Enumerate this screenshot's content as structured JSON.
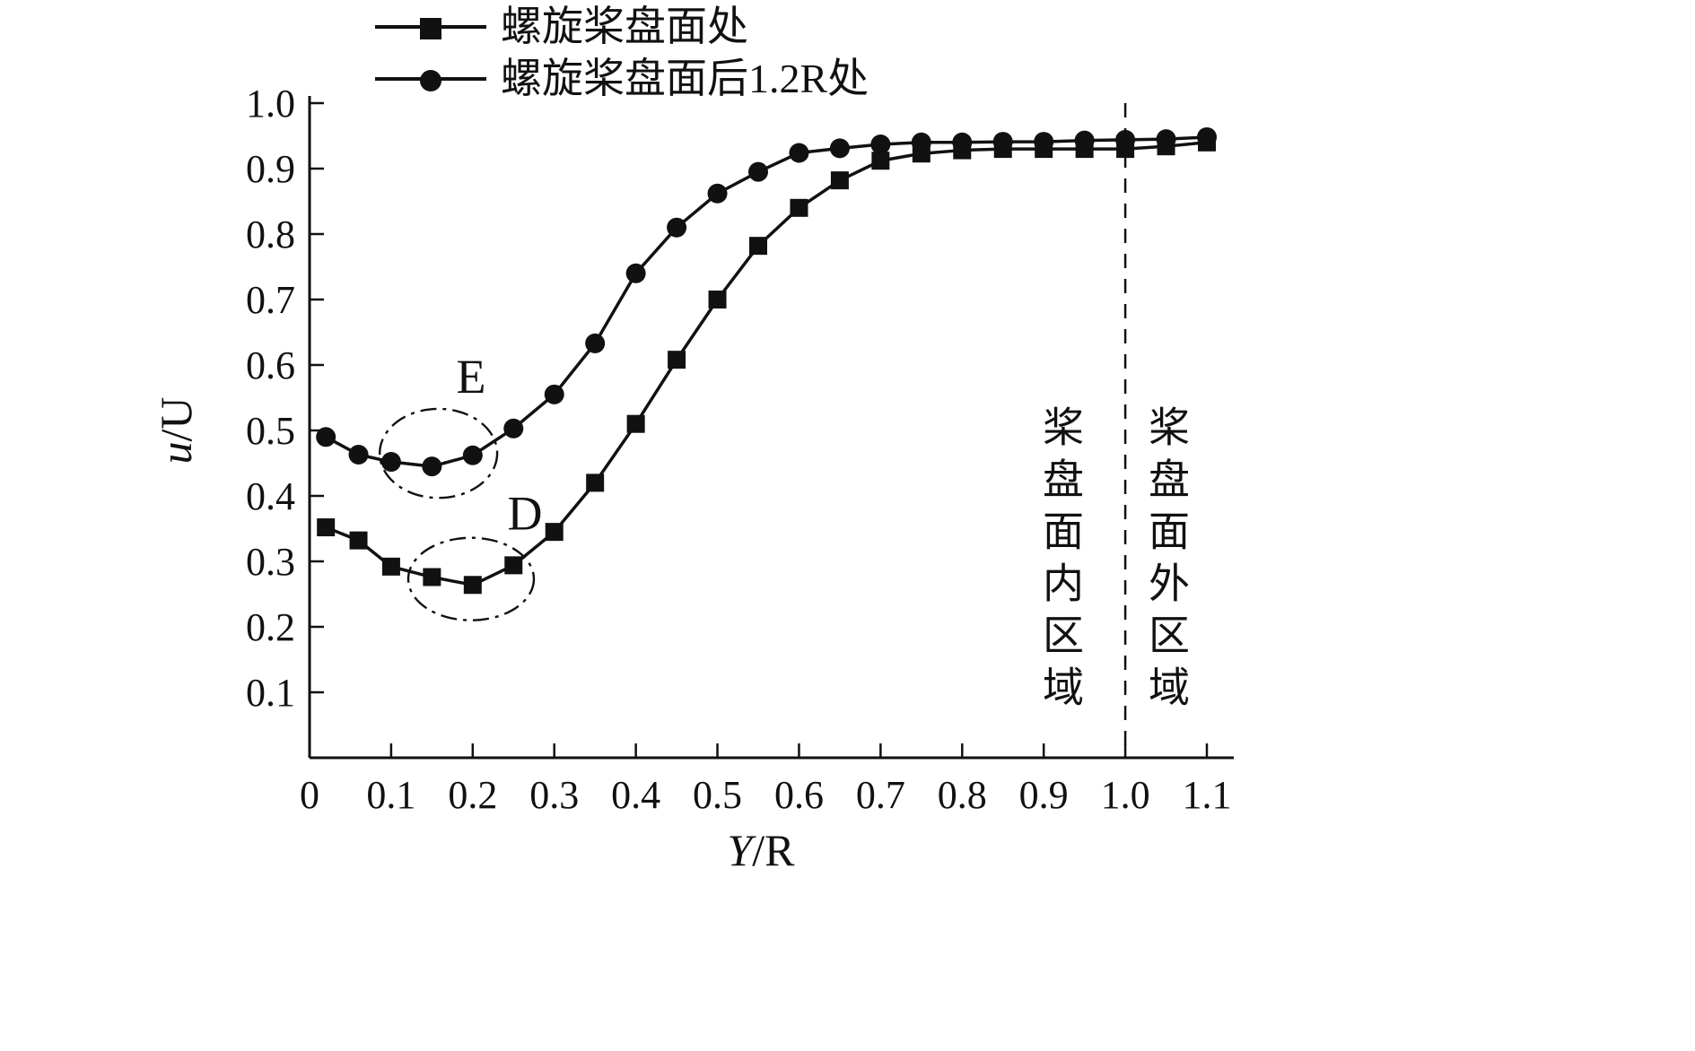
{
  "chart_data": {
    "type": "line",
    "title": "",
    "xlabel": "Y/R",
    "ylabel": "u/U",
    "xlim": [
      0,
      1.12
    ],
    "ylim": [
      0,
      1.0
    ],
    "grid": false,
    "legend_position": "top-left",
    "xticks": [
      0,
      0.1,
      0.2,
      0.3,
      0.4,
      0.5,
      0.6,
      0.7,
      0.8,
      0.9,
      1.0,
      1.1
    ],
    "xtick_labels": [
      "0",
      "0.1",
      "0.2",
      "0.3",
      "0.4",
      "0.5",
      "0.6",
      "0.7",
      "0.8",
      "0.9",
      "1.0",
      "1.1"
    ],
    "yticks": [
      0.1,
      0.2,
      0.3,
      0.4,
      0.5,
      0.6,
      0.7,
      0.8,
      0.9,
      1.0
    ],
    "ytick_labels": [
      "0.1",
      "0.2",
      "0.3",
      "0.4",
      "0.5",
      "0.6",
      "0.7",
      "0.8",
      "0.9",
      "1.0"
    ],
    "series": [
      {
        "name": "螺旋桨盘面处",
        "marker": "square",
        "x": [
          0.02,
          0.06,
          0.1,
          0.15,
          0.2,
          0.25,
          0.3,
          0.35,
          0.4,
          0.45,
          0.5,
          0.55,
          0.6,
          0.65,
          0.7,
          0.75,
          0.8,
          0.85,
          0.9,
          0.95,
          1.0,
          1.05,
          1.1
        ],
        "y": [
          0.352,
          0.332,
          0.292,
          0.276,
          0.264,
          0.294,
          0.345,
          0.42,
          0.51,
          0.608,
          0.7,
          0.782,
          0.84,
          0.882,
          0.912,
          0.923,
          0.928,
          0.93,
          0.93,
          0.93,
          0.93,
          0.934,
          0.94
        ]
      },
      {
        "name": "螺旋桨盘面后1.2R处",
        "marker": "circle",
        "x": [
          0.02,
          0.06,
          0.1,
          0.15,
          0.2,
          0.25,
          0.3,
          0.35,
          0.4,
          0.45,
          0.5,
          0.55,
          0.6,
          0.65,
          0.7,
          0.75,
          0.8,
          0.85,
          0.9,
          0.95,
          1.0,
          1.05,
          1.1
        ],
        "y": [
          0.49,
          0.463,
          0.452,
          0.445,
          0.462,
          0.503,
          0.555,
          0.633,
          0.74,
          0.81,
          0.862,
          0.895,
          0.924,
          0.931,
          0.937,
          0.94,
          0.94,
          0.941,
          0.941,
          0.943,
          0.944,
          0.945,
          0.948
        ]
      }
    ],
    "vline": {
      "x": 1.0,
      "style": "dashed"
    },
    "annotations": [
      {
        "label": "E",
        "x": 0.198,
        "y": 0.582,
        "ellipse": {
          "cx": 0.158,
          "cy": 0.465,
          "rx": 0.072,
          "ry": 0.068
        }
      },
      {
        "label": "D",
        "x": 0.264,
        "y": 0.373,
        "ellipse": {
          "cx": 0.198,
          "cy": 0.273,
          "rx": 0.077,
          "ry": 0.063
        }
      }
    ],
    "region_labels": [
      {
        "text": "桨盘面内区域",
        "side": "inside"
      },
      {
        "text": "桨盘面外区域",
        "side": "outside"
      }
    ]
  }
}
